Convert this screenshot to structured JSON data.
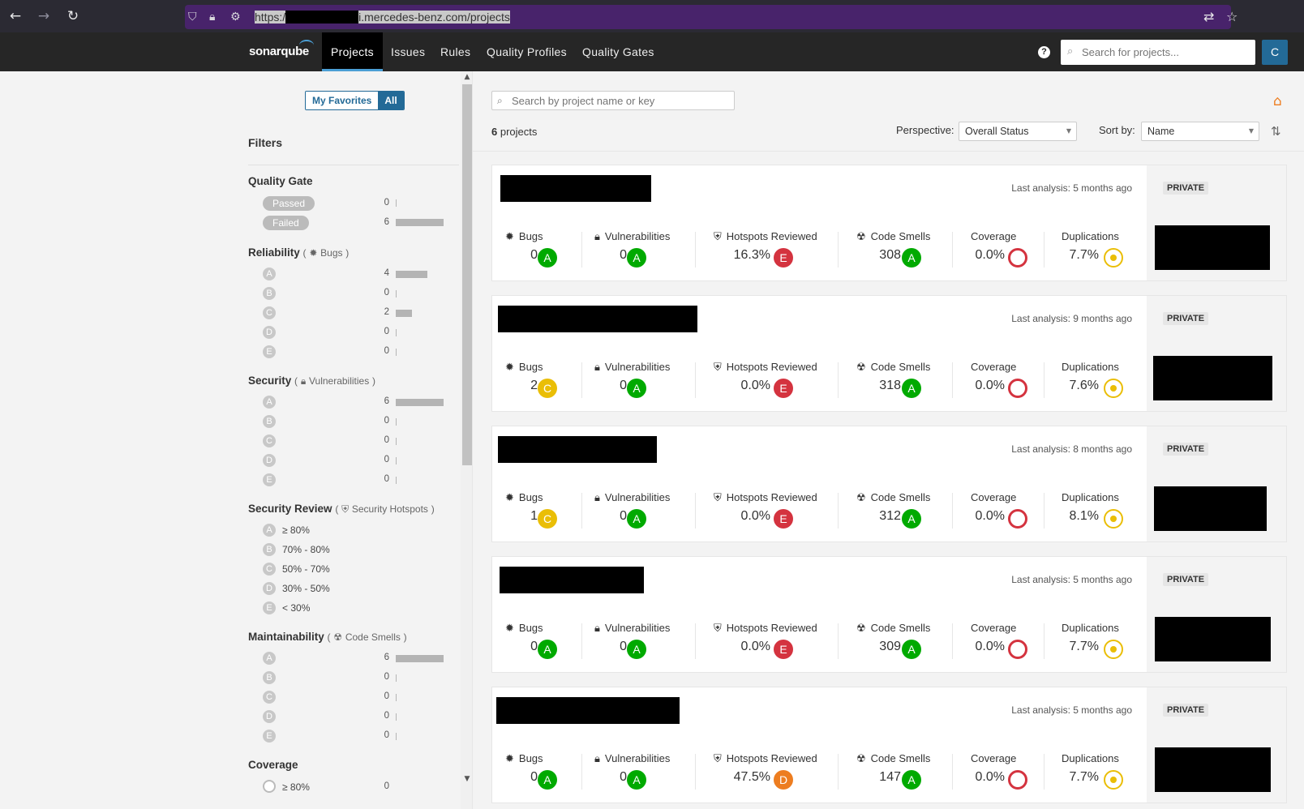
{
  "browser": {
    "url_scheme": "https:/",
    "url_host_path": "i.mercedes-benz.com/projects"
  },
  "nav": {
    "logo": "sonarqube",
    "items": [
      "Projects",
      "Issues",
      "Rules",
      "Quality Profiles",
      "Quality Gates"
    ],
    "active": "Projects",
    "help": "?",
    "search_placeholder": "Search for projects...",
    "avatar": "C"
  },
  "sidebar": {
    "fav_toggle": {
      "favorites": "My Favorites",
      "all": "All"
    },
    "filters_title": "Filters",
    "quality_gate": {
      "title": "Quality Gate",
      "items": [
        {
          "label": "Passed",
          "count": "0",
          "fraction": 0
        },
        {
          "label": "Failed",
          "count": "6",
          "fraction": 1
        }
      ]
    },
    "reliability": {
      "title": "Reliability",
      "open": "(",
      "sub": "Bugs",
      "close": ")",
      "items": [
        {
          "grade": "A",
          "count": "4",
          "fraction": 0.667
        },
        {
          "grade": "B",
          "count": "0",
          "fraction": 0
        },
        {
          "grade": "C",
          "count": "2",
          "fraction": 0.333
        },
        {
          "grade": "D",
          "count": "0",
          "fraction": 0
        },
        {
          "grade": "E",
          "count": "0",
          "fraction": 0
        }
      ]
    },
    "security": {
      "title": "Security",
      "open": "(",
      "sub": "Vulnerabilities",
      "close": ")",
      "items": [
        {
          "grade": "A",
          "count": "6",
          "fraction": 1
        },
        {
          "grade": "B",
          "count": "0",
          "fraction": 0
        },
        {
          "grade": "C",
          "count": "0",
          "fraction": 0
        },
        {
          "grade": "D",
          "count": "0",
          "fraction": 0
        },
        {
          "grade": "E",
          "count": "0",
          "fraction": 0
        }
      ]
    },
    "security_review": {
      "title": "Security Review",
      "open": "(",
      "sub": "Security Hotspots",
      "close": ")",
      "items": [
        {
          "grade": "A",
          "label": "≥ 80%"
        },
        {
          "grade": "B",
          "label": "70% - 80%"
        },
        {
          "grade": "C",
          "label": "50% - 70%"
        },
        {
          "grade": "D",
          "label": "30% - 50%"
        },
        {
          "grade": "E",
          "label": "< 30%"
        }
      ]
    },
    "maintainability": {
      "title": "Maintainability",
      "open": "(",
      "sub": "Code Smells",
      "close": ")",
      "items": [
        {
          "grade": "A",
          "count": "6",
          "fraction": 1
        },
        {
          "grade": "B",
          "count": "0",
          "fraction": 0
        },
        {
          "grade": "C",
          "count": "0",
          "fraction": 0
        },
        {
          "grade": "D",
          "count": "0",
          "fraction": 0
        },
        {
          "grade": "E",
          "count": "0",
          "fraction": 0
        }
      ]
    },
    "coverage": {
      "title": "Coverage",
      "first_item": {
        "label": "≥ 80%",
        "count": "0"
      }
    }
  },
  "main": {
    "search_placeholder": "Search by project name or key",
    "count_number": "6",
    "count_label": "projects",
    "perspective_label": "Perspective:",
    "perspective_value": "Overall Status",
    "sortby_label": "Sort by:",
    "sortby_value": "Name",
    "metric_labels": {
      "bugs": "Bugs",
      "vulnerabilities": "Vulnerabilities",
      "hotspots": "Hotspots Reviewed",
      "code_smells": "Code Smells",
      "coverage": "Coverage",
      "duplications": "Duplications"
    },
    "private_label": "PRIVATE",
    "projects": [
      {
        "last_analysis": "Last analysis: 5 months ago",
        "bugs": "0",
        "bugs_rating": "A",
        "vulns": "0",
        "vulns_rating": "A",
        "hotspots": "16.3%",
        "hotspots_rating": "E",
        "smells": "308",
        "smells_rating": "A",
        "coverage": "0.0%",
        "duplications": "7.7%"
      },
      {
        "last_analysis": "Last analysis: 9 months ago",
        "bugs": "2",
        "bugs_rating": "C",
        "vulns": "0",
        "vulns_rating": "A",
        "hotspots": "0.0%",
        "hotspots_rating": "E",
        "smells": "318",
        "smells_rating": "A",
        "coverage": "0.0%",
        "duplications": "7.6%"
      },
      {
        "last_analysis": "Last analysis: 8 months ago",
        "bugs": "1",
        "bugs_rating": "C",
        "vulns": "0",
        "vulns_rating": "A",
        "hotspots": "0.0%",
        "hotspots_rating": "E",
        "smells": "312",
        "smells_rating": "A",
        "coverage": "0.0%",
        "duplications": "8.1%"
      },
      {
        "last_analysis": "Last analysis: 5 months ago",
        "bugs": "0",
        "bugs_rating": "A",
        "vulns": "0",
        "vulns_rating": "A",
        "hotspots": "0.0%",
        "hotspots_rating": "E",
        "smells": "309",
        "smells_rating": "A",
        "coverage": "0.0%",
        "duplications": "7.7%"
      },
      {
        "last_analysis": "Last analysis: 5 months ago",
        "bugs": "0",
        "bugs_rating": "A",
        "vulns": "0",
        "vulns_rating": "A",
        "hotspots": "47.5%",
        "hotspots_rating": "D",
        "smells": "147",
        "smells_rating": "A",
        "coverage": "0.0%",
        "duplications": "7.7%"
      }
    ]
  }
}
